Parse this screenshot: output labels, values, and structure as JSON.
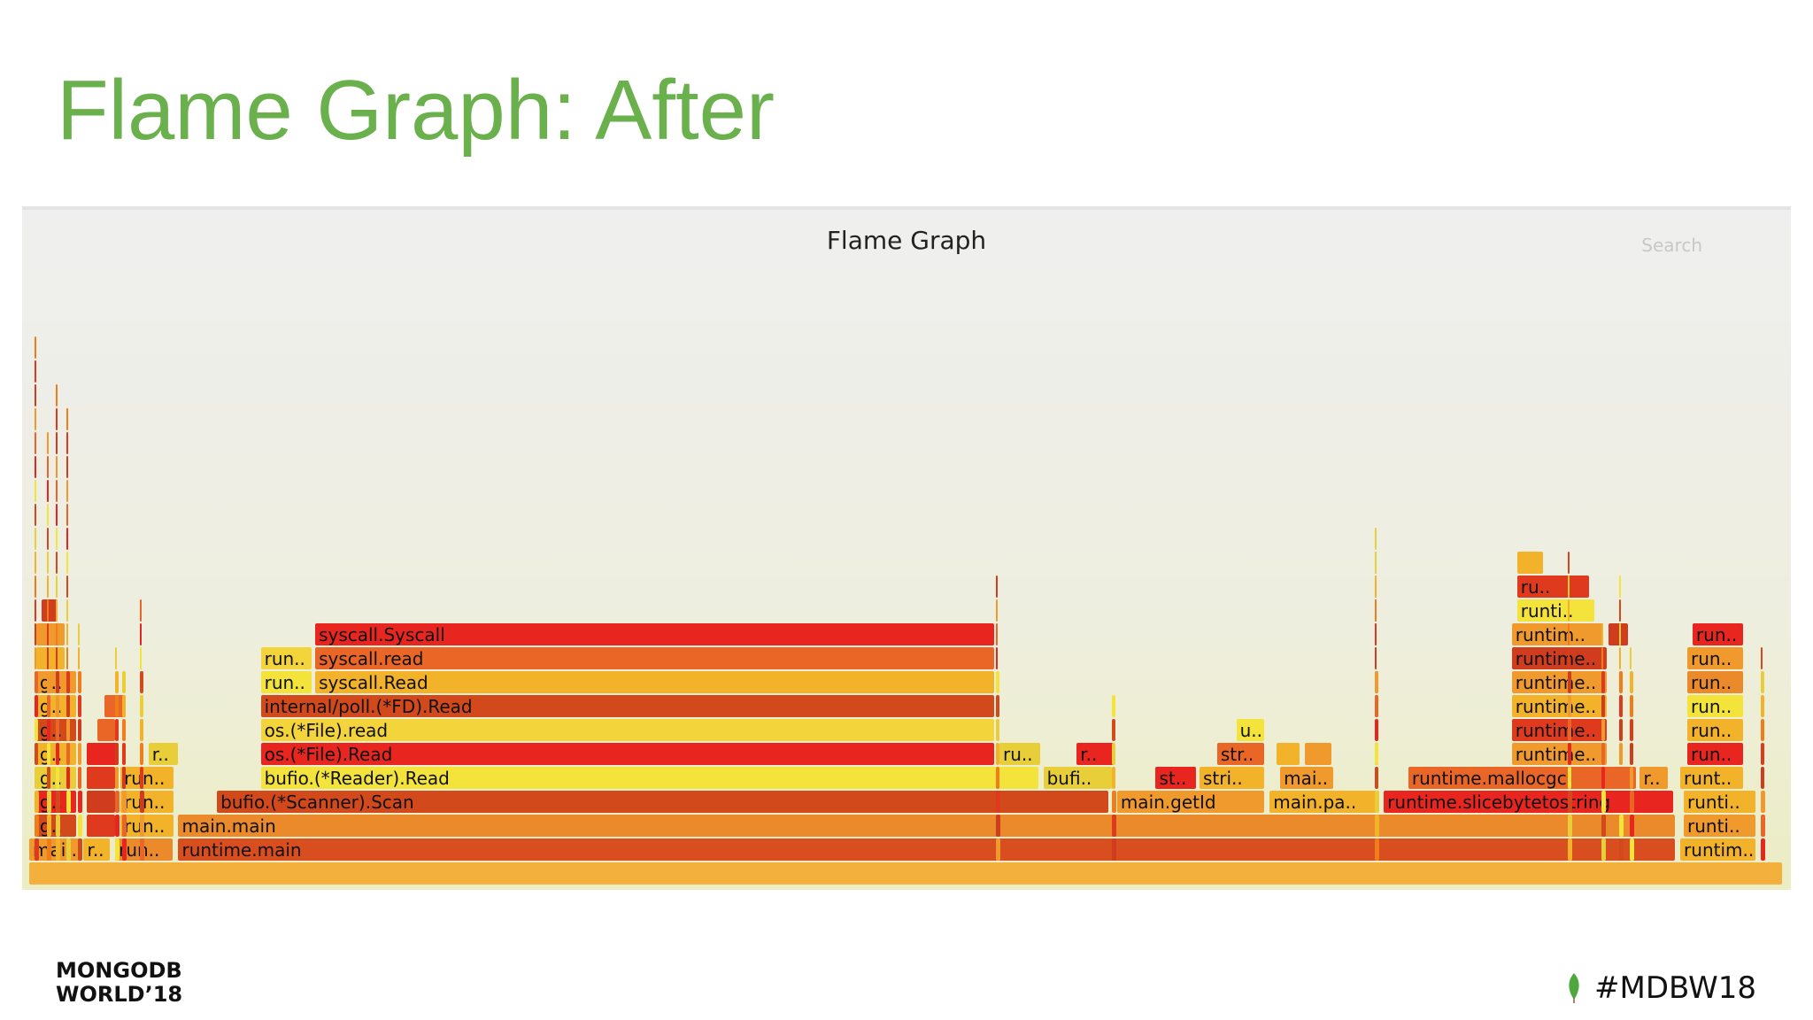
{
  "slide": {
    "title": "Flame Graph: After"
  },
  "flamegraph": {
    "title": "Flame Graph",
    "search_label": "Search",
    "palette": [
      "#e03a1e",
      "#f07c1a",
      "#f2b229",
      "#e8cf3a",
      "#d2491c",
      "#f3e33a",
      "#e8261f",
      "#ea6626",
      "#f09a2e",
      "#cf3c1e"
    ],
    "frames": [
      {
        "label": "",
        "depth": 0,
        "start": 0.0,
        "width": 1.0,
        "color": "#f4b03d"
      },
      {
        "label": "mai..",
        "depth": 1,
        "start": 0.0,
        "width": 0.03,
        "color": "#f09a2e"
      },
      {
        "label": "r..",
        "depth": 1,
        "start": 0.031,
        "width": 0.016,
        "color": "#f2b229"
      },
      {
        "label": "run..",
        "depth": 1,
        "start": 0.049,
        "width": 0.034,
        "color": "#ea8a2a"
      },
      {
        "label": "runtime.main",
        "depth": 1,
        "start": 0.085,
        "width": 0.854,
        "color": "#d94e1f"
      },
      {
        "label": "runtim..",
        "depth": 1,
        "start": 0.941,
        "width": 0.044,
        "color": "#f2b229"
      },
      {
        "label": "g..",
        "depth": 2,
        "start": 0.004,
        "width": 0.024,
        "color": "#d2491c"
      },
      {
        "label": "",
        "depth": 2,
        "start": 0.033,
        "width": 0.017,
        "color": "#e03a1e"
      },
      {
        "label": "run..",
        "depth": 2,
        "start": 0.052,
        "width": 0.031,
        "color": "#f2b229"
      },
      {
        "label": "main.main",
        "depth": 2,
        "start": 0.085,
        "width": 0.854,
        "color": "#ea8a2a"
      },
      {
        "label": "runti..",
        "depth": 2,
        "start": 0.943,
        "width": 0.042,
        "color": "#f09a2e"
      },
      {
        "label": "g..",
        "depth": 3,
        "start": 0.004,
        "width": 0.024,
        "color": "#e8261f"
      },
      {
        "label": "",
        "depth": 3,
        "start": 0.033,
        "width": 0.017,
        "color": "#cf3c1e"
      },
      {
        "label": "run..",
        "depth": 3,
        "start": 0.052,
        "width": 0.031,
        "color": "#f2b229"
      },
      {
        "label": "bufio.(*Scanner).Scan",
        "depth": 3,
        "start": 0.107,
        "width": 0.509,
        "color": "#d2491c"
      },
      {
        "label": "main.getId",
        "depth": 3,
        "start": 0.62,
        "width": 0.085,
        "color": "#f09a2e"
      },
      {
        "label": "main.pa..",
        "depth": 3,
        "start": 0.707,
        "width": 0.062,
        "color": "#f2b229"
      },
      {
        "label": "runtime.slicebytetostring",
        "depth": 3,
        "start": 0.772,
        "width": 0.166,
        "color": "#e8261f"
      },
      {
        "label": "runti..",
        "depth": 3,
        "start": 0.943,
        "width": 0.042,
        "color": "#f2b229"
      },
      {
        "label": "g..",
        "depth": 4,
        "start": 0.004,
        "width": 0.024,
        "color": "#e8cf3a"
      },
      {
        "label": "",
        "depth": 4,
        "start": 0.033,
        "width": 0.017,
        "color": "#e03a1e"
      },
      {
        "label": "run..",
        "depth": 4,
        "start": 0.052,
        "width": 0.031,
        "color": "#f2b229"
      },
      {
        "label": "bufio.(*Reader).Read",
        "depth": 4,
        "start": 0.132,
        "width": 0.444,
        "color": "#f3e33a"
      },
      {
        "label": "bufi..",
        "depth": 4,
        "start": 0.578,
        "width": 0.04,
        "color": "#e8cf3a"
      },
      {
        "label": "st..",
        "depth": 4,
        "start": 0.642,
        "width": 0.024,
        "color": "#e8261f"
      },
      {
        "label": "stri..",
        "depth": 4,
        "start": 0.667,
        "width": 0.038,
        "color": "#f2b229"
      },
      {
        "label": "mai..",
        "depth": 4,
        "start": 0.713,
        "width": 0.031,
        "color": "#f09a2e"
      },
      {
        "label": "runtime.mallocgc",
        "depth": 4,
        "start": 0.786,
        "width": 0.131,
        "color": "#ea6626"
      },
      {
        "label": "r..",
        "depth": 4,
        "start": 0.918,
        "width": 0.017,
        "color": "#f09a2e"
      },
      {
        "label": "runt..",
        "depth": 4,
        "start": 0.941,
        "width": 0.037,
        "color": "#f2b229"
      },
      {
        "label": "g..",
        "depth": 5,
        "start": 0.004,
        "width": 0.024,
        "color": "#f2b229"
      },
      {
        "label": "",
        "depth": 5,
        "start": 0.033,
        "width": 0.019,
        "color": "#e8261f"
      },
      {
        "label": "r..",
        "depth": 5,
        "start": 0.068,
        "width": 0.018,
        "color": "#e8cf3a"
      },
      {
        "label": "os.(*File).Read",
        "depth": 5,
        "start": 0.132,
        "width": 0.419,
        "color": "#e8261f"
      },
      {
        "label": "ru..",
        "depth": 5,
        "start": 0.553,
        "width": 0.024,
        "color": "#e8cf3a"
      },
      {
        "label": "r..",
        "depth": 5,
        "start": 0.597,
        "width": 0.022,
        "color": "#e8261f"
      },
      {
        "label": "str..",
        "depth": 5,
        "start": 0.677,
        "width": 0.028,
        "color": "#ea6626"
      },
      {
        "label": "",
        "depth": 5,
        "start": 0.711,
        "width": 0.014,
        "color": "#f2b229"
      },
      {
        "label": "",
        "depth": 5,
        "start": 0.727,
        "width": 0.016,
        "color": "#f09a2e"
      },
      {
        "label": "runtime..",
        "depth": 5,
        "start": 0.845,
        "width": 0.055,
        "color": "#f09a2e"
      },
      {
        "label": "run..",
        "depth": 5,
        "start": 0.945,
        "width": 0.033,
        "color": "#e8261f"
      },
      {
        "label": "g..",
        "depth": 6,
        "start": 0.004,
        "width": 0.024,
        "color": "#d2491c"
      },
      {
        "label": "",
        "depth": 6,
        "start": 0.039,
        "width": 0.011,
        "color": "#ea6626"
      },
      {
        "label": "os.(*File).read",
        "depth": 6,
        "start": 0.132,
        "width": 0.419,
        "color": "#f3d43a"
      },
      {
        "label": "u..",
        "depth": 6,
        "start": 0.688,
        "width": 0.017,
        "color": "#f3e33a"
      },
      {
        "label": "runtime..",
        "depth": 6,
        "start": 0.845,
        "width": 0.055,
        "color": "#e03a1e"
      },
      {
        "label": "run..",
        "depth": 6,
        "start": 0.945,
        "width": 0.033,
        "color": "#f2b229"
      },
      {
        "label": "g..",
        "depth": 7,
        "start": 0.004,
        "width": 0.024,
        "color": "#f2b229"
      },
      {
        "label": "",
        "depth": 7,
        "start": 0.043,
        "width": 0.013,
        "color": "#ea6626"
      },
      {
        "label": "internal/poll.(*FD).Read",
        "depth": 7,
        "start": 0.132,
        "width": 0.419,
        "color": "#d2491c"
      },
      {
        "label": "runtime..",
        "depth": 7,
        "start": 0.845,
        "width": 0.055,
        "color": "#f2b229"
      },
      {
        "label": "run..",
        "depth": 7,
        "start": 0.945,
        "width": 0.033,
        "color": "#f3e33a"
      },
      {
        "label": "g..",
        "depth": 8,
        "start": 0.004,
        "width": 0.024,
        "color": "#f09a2e"
      },
      {
        "label": "run..",
        "depth": 8,
        "start": 0.132,
        "width": 0.03,
        "color": "#f3e33a"
      },
      {
        "label": "syscall.Read",
        "depth": 8,
        "start": 0.163,
        "width": 0.388,
        "color": "#f2b229"
      },
      {
        "label": "runtime..",
        "depth": 8,
        "start": 0.845,
        "width": 0.055,
        "color": "#f09a2e"
      },
      {
        "label": "run..",
        "depth": 8,
        "start": 0.945,
        "width": 0.033,
        "color": "#ea8a2a"
      },
      {
        "label": "",
        "depth": 9,
        "start": 0.004,
        "width": 0.017,
        "color": "#f2b229"
      },
      {
        "label": "run..",
        "depth": 9,
        "start": 0.132,
        "width": 0.03,
        "color": "#f3d43a"
      },
      {
        "label": "syscall.read",
        "depth": 9,
        "start": 0.163,
        "width": 0.388,
        "color": "#ea6626"
      },
      {
        "label": "runtime..",
        "depth": 9,
        "start": 0.845,
        "width": 0.055,
        "color": "#cf3c1e"
      },
      {
        "label": "run..",
        "depth": 9,
        "start": 0.945,
        "width": 0.033,
        "color": "#f09a2e"
      },
      {
        "label": "",
        "depth": 10,
        "start": 0.004,
        "width": 0.017,
        "color": "#f09a2e"
      },
      {
        "label": "syscall.Syscall",
        "depth": 10,
        "start": 0.163,
        "width": 0.388,
        "color": "#e8261f"
      },
      {
        "label": "runtim..",
        "depth": 10,
        "start": 0.845,
        "width": 0.053,
        "color": "#f09a2e"
      },
      {
        "label": "",
        "depth": 10,
        "start": 0.9,
        "width": 0.012,
        "color": "#cf3c1e"
      },
      {
        "label": "run..",
        "depth": 10,
        "start": 0.948,
        "width": 0.03,
        "color": "#e8261f"
      },
      {
        "label": "",
        "depth": 11,
        "start": 0.007,
        "width": 0.01,
        "color": "#cf3c1e"
      },
      {
        "label": "runti..",
        "depth": 11,
        "start": 0.848,
        "width": 0.045,
        "color": "#f3e33a"
      },
      {
        "label": "ru..",
        "depth": 12,
        "start": 0.848,
        "width": 0.042,
        "color": "#e03a1e"
      },
      {
        "label": "",
        "depth": 13,
        "start": 0.848,
        "width": 0.016,
        "color": "#f2b229"
      }
    ]
  },
  "footer": {
    "logo_line1": "MONGODB",
    "logo_line2": "WORLD’18",
    "hashtag": "#MDBW18",
    "leaf_color": "#4fa83d"
  }
}
